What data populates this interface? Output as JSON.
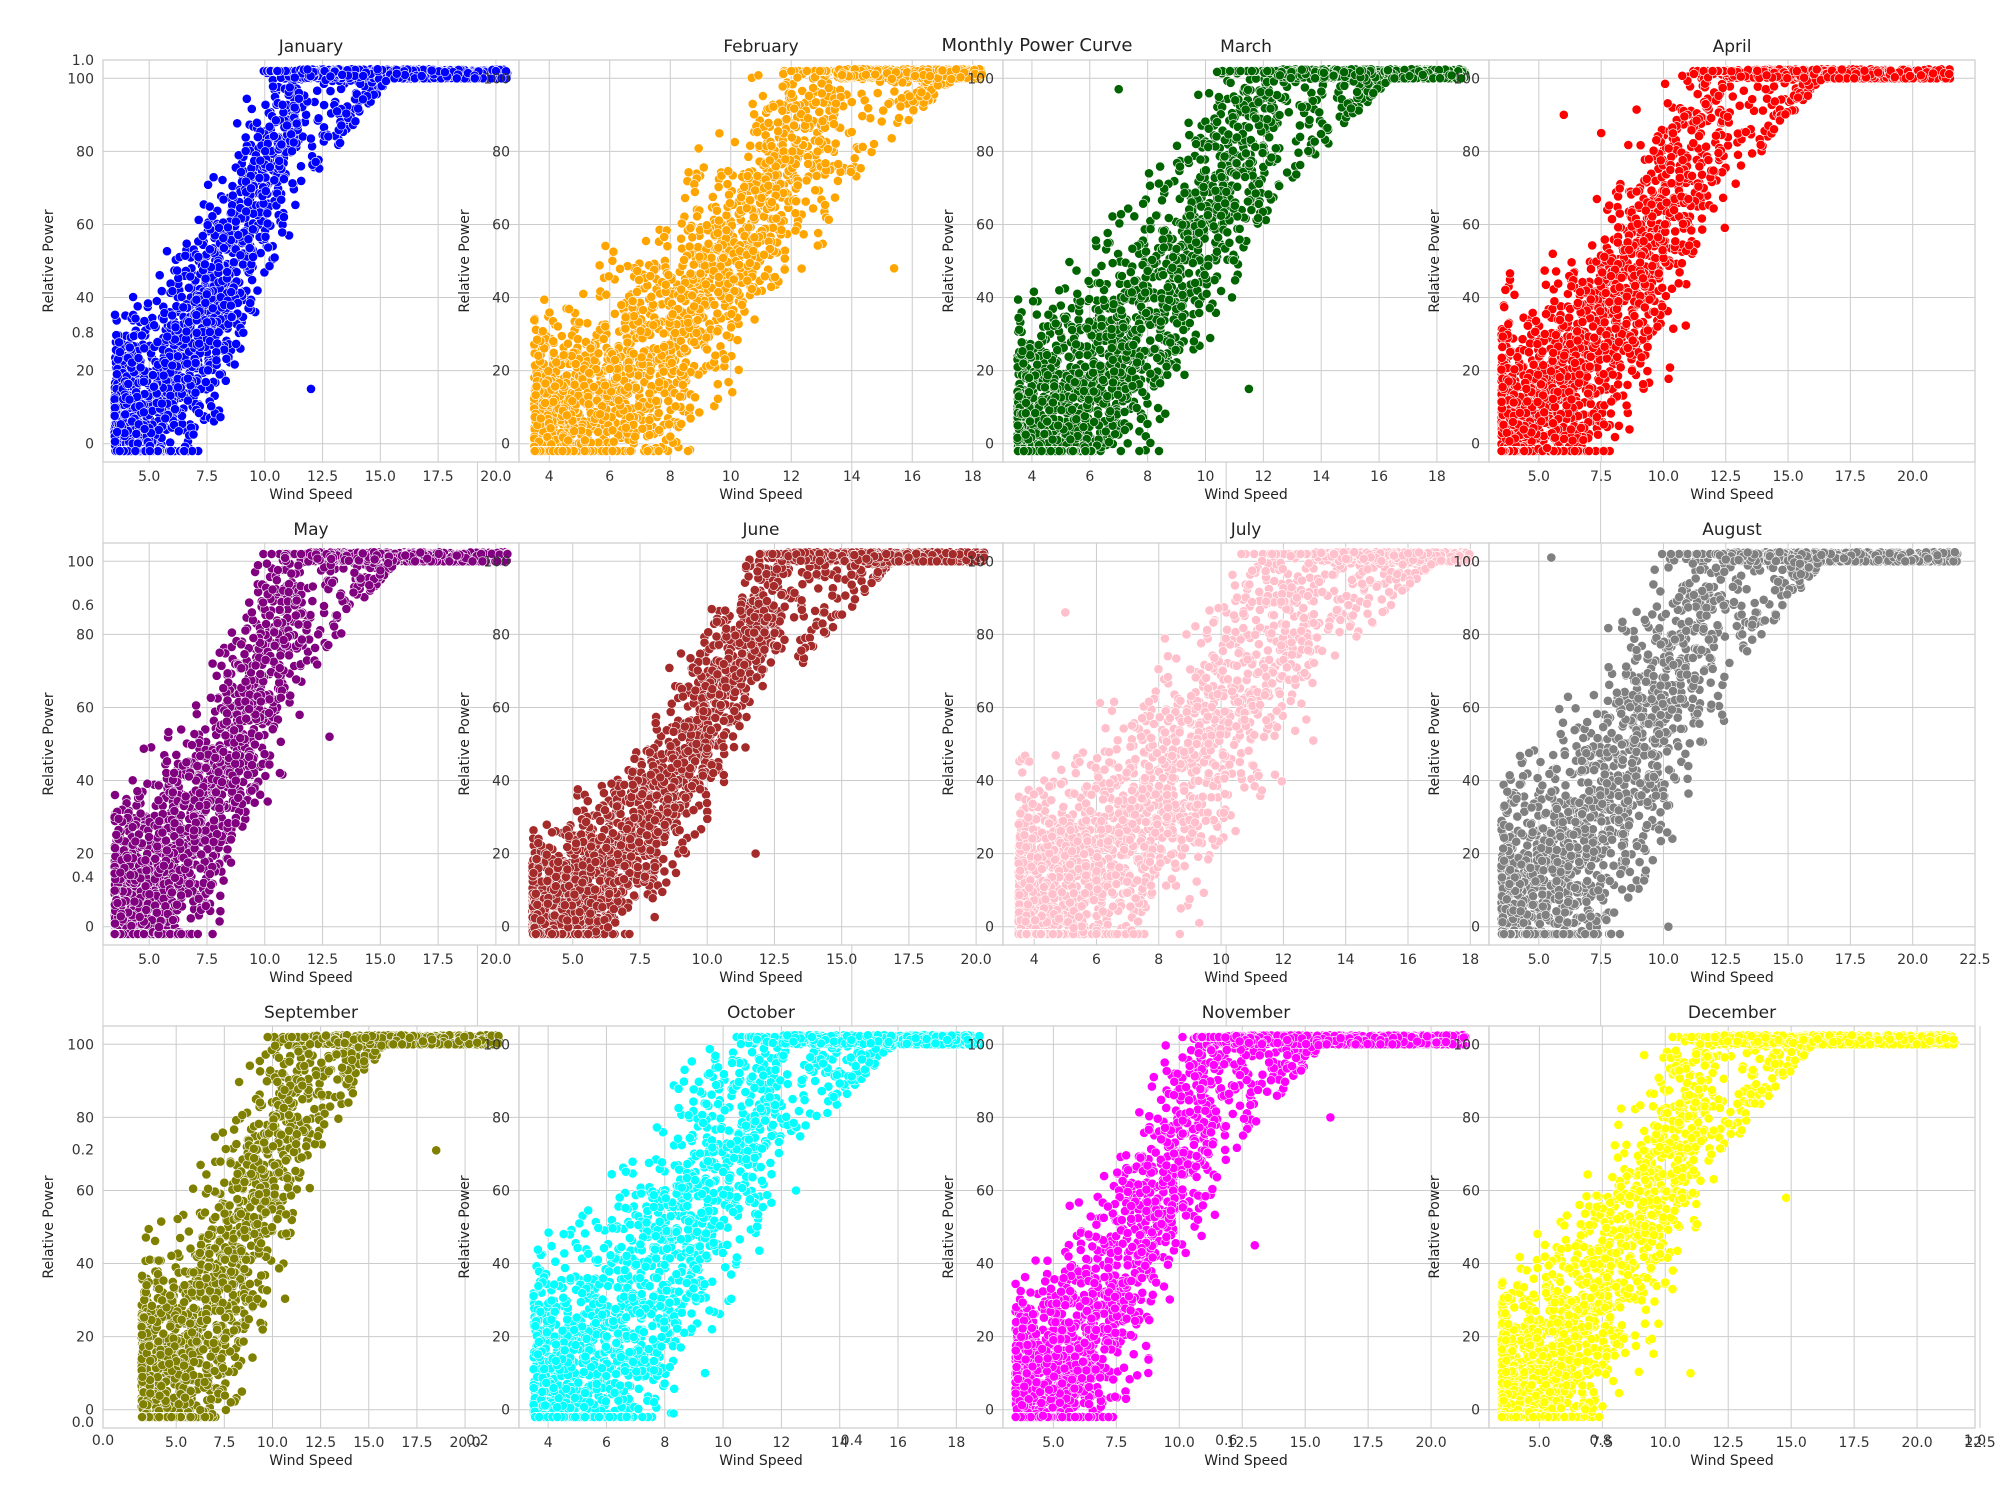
{
  "suptitle": "Monthly Power Curve",
  "background_axis": {
    "x_ticks": [
      "0.0",
      "0.2",
      "0.4",
      "0.6",
      "0.8",
      "1.0"
    ],
    "y_ticks": [
      "0.0",
      "0.2",
      "0.4",
      "0.6",
      "0.8",
      "1.0"
    ]
  },
  "chart_data": [
    {
      "type": "scatter",
      "title": "January",
      "xlabel": "Wind Speed",
      "ylabel": "Relative Power",
      "color": "#0000ff",
      "xlim": [
        3.0,
        21.0
      ],
      "ylim": [
        -5,
        105
      ],
      "x_ticks": [
        5.0,
        7.5,
        10.0,
        12.5,
        15.0,
        17.5,
        20.0
      ],
      "x_tick_labels": [
        "5.0",
        "7.5",
        "10.0",
        "12.5",
        "15.0",
        "17.5",
        "20.0"
      ],
      "y_ticks": [
        0,
        20,
        40,
        60,
        80,
        100
      ],
      "grid": true,
      "shape": {
        "x_start": 3.5,
        "x_rated": 11.5,
        "x_max": 20.5,
        "spread": 2.0,
        "outliers": [
          [
            12.0,
            15
          ],
          [
            20.0,
            102
          ]
        ]
      }
    },
    {
      "type": "scatter",
      "title": "February",
      "xlabel": "Wind Speed",
      "ylabel": "Relative Power",
      "color": "#ffa500",
      "xlim": [
        3.0,
        19.0
      ],
      "ylim": [
        -5,
        105
      ],
      "x_ticks": [
        4,
        6,
        8,
        10,
        12,
        14,
        16,
        18
      ],
      "x_tick_labels": [
        "4",
        "6",
        "8",
        "10",
        "12",
        "14",
        "16",
        "18"
      ],
      "y_ticks": [
        0,
        20,
        40,
        60,
        80,
        100
      ],
      "grid": true,
      "shape": {
        "x_start": 3.5,
        "x_rated": 13.5,
        "x_max": 18.3,
        "spread": 2.2,
        "outliers": [
          [
            15.4,
            48
          ],
          [
            18.3,
            101
          ]
        ]
      }
    },
    {
      "type": "scatter",
      "title": "March",
      "xlabel": "Wind Speed",
      "ylabel": "Relative Power",
      "color": "#006400",
      "xlim": [
        3.0,
        19.8
      ],
      "ylim": [
        -5,
        105
      ],
      "x_ticks": [
        4,
        6,
        8,
        10,
        12,
        14,
        16,
        18
      ],
      "x_tick_labels": [
        "4",
        "6",
        "8",
        "10",
        "12",
        "14",
        "16",
        "18"
      ],
      "y_ticks": [
        0,
        20,
        40,
        60,
        80,
        100
      ],
      "grid": true,
      "shape": {
        "x_start": 3.5,
        "x_rated": 12.5,
        "x_max": 19.0,
        "spread": 2.2,
        "outliers": [
          [
            11.5,
            15
          ],
          [
            7.0,
            97
          ]
        ]
      }
    },
    {
      "type": "scatter",
      "title": "April",
      "xlabel": "Wind Speed",
      "ylabel": "Relative Power",
      "color": "#ff0000",
      "xlim": [
        3.0,
        22.5
      ],
      "ylim": [
        -5,
        105
      ],
      "x_ticks": [
        5.0,
        7.5,
        10.0,
        12.5,
        15.0,
        17.5,
        20.0
      ],
      "x_tick_labels": [
        "5.0",
        "7.5",
        "10.0",
        "12.5",
        "15.0",
        "17.5",
        "20.0"
      ],
      "y_ticks": [
        0,
        20,
        40,
        60,
        80,
        100
      ],
      "grid": true,
      "shape": {
        "x_start": 3.5,
        "x_rated": 12.5,
        "x_max": 21.5,
        "spread": 2.3,
        "outliers": [
          [
            6.0,
            90
          ],
          [
            7.5,
            85
          ]
        ]
      }
    },
    {
      "type": "scatter",
      "title": "May",
      "xlabel": "Wind Speed",
      "ylabel": "Relative Power",
      "color": "#800080",
      "xlim": [
        3.0,
        21.0
      ],
      "ylim": [
        -5,
        105
      ],
      "x_ticks": [
        5.0,
        7.5,
        10.0,
        12.5,
        15.0,
        17.5,
        20.0
      ],
      "x_tick_labels": [
        "5.0",
        "7.5",
        "10.0",
        "12.5",
        "15.0",
        "17.5",
        "20.0"
      ],
      "y_ticks": [
        0,
        20,
        40,
        60,
        80,
        100
      ],
      "grid": true,
      "shape": {
        "x_start": 3.5,
        "x_rated": 11.8,
        "x_max": 20.5,
        "spread": 2.1,
        "outliers": [
          [
            12.8,
            52
          ],
          [
            20.5,
            102
          ]
        ]
      }
    },
    {
      "type": "scatter",
      "title": "June",
      "xlabel": "Wind Speed",
      "ylabel": "Relative Power",
      "color": "#a52a2a",
      "xlim": [
        3.0,
        21.0
      ],
      "ylim": [
        -5,
        105
      ],
      "x_ticks": [
        5.0,
        7.5,
        10.0,
        12.5,
        15.0,
        17.5,
        20.0
      ],
      "x_tick_labels": [
        "5.0",
        "7.5",
        "10.0",
        "12.5",
        "15.0",
        "17.5",
        "20.0"
      ],
      "y_ticks": [
        0,
        20,
        40,
        60,
        80,
        100
      ],
      "grid": true,
      "shape": {
        "x_start": 3.5,
        "x_rated": 13.0,
        "x_max": 20.3,
        "spread": 1.6,
        "outliers": [
          [
            11.8,
            20
          ],
          [
            20.3,
            101
          ]
        ]
      }
    },
    {
      "type": "scatter",
      "title": "July",
      "xlabel": "Wind Speed",
      "ylabel": "Relative Power",
      "color": "#ffc0cb",
      "xlim": [
        3.0,
        18.6
      ],
      "ylim": [
        -5,
        105
      ],
      "x_ticks": [
        4,
        6,
        8,
        10,
        12,
        14,
        16,
        18
      ],
      "x_tick_labels": [
        "4",
        "6",
        "8",
        "10",
        "12",
        "14",
        "16",
        "18"
      ],
      "y_ticks": [
        0,
        20,
        40,
        60,
        80,
        100
      ],
      "grid": true,
      "shape": {
        "x_start": 3.5,
        "x_rated": 13.0,
        "x_max": 18.0,
        "spread": 2.4,
        "outliers": [
          [
            5.0,
            86
          ],
          [
            9.3,
            1
          ]
        ]
      }
    },
    {
      "type": "scatter",
      "title": "August",
      "xlabel": "Wind Speed",
      "ylabel": "Relative Power",
      "color": "#808080",
      "xlim": [
        3.0,
        22.5
      ],
      "ylim": [
        -5,
        105
      ],
      "x_ticks": [
        5.0,
        7.5,
        10.0,
        12.5,
        15.0,
        17.5,
        20.0,
        22.5
      ],
      "x_tick_labels": [
        "5.0",
        "7.5",
        "10.0",
        "12.5",
        "15.0",
        "17.5",
        "20.0",
        "22.5"
      ],
      "y_ticks": [
        0,
        20,
        40,
        60,
        80,
        100
      ],
      "grid": true,
      "shape": {
        "x_start": 3.5,
        "x_rated": 12.5,
        "x_max": 21.8,
        "spread": 2.6,
        "outliers": [
          [
            5.5,
            101
          ],
          [
            10.2,
            0
          ]
        ]
      }
    },
    {
      "type": "scatter",
      "title": "September",
      "xlabel": "Wind Speed",
      "ylabel": "Relative Power",
      "color": "#808000",
      "xlim": [
        1.2,
        22.8
      ],
      "ylim": [
        -5,
        105
      ],
      "x_ticks": [
        5.0,
        7.5,
        10.0,
        12.5,
        15.0,
        17.5,
        20.0
      ],
      "x_tick_labels": [
        "5.0",
        "7.5",
        "10.0",
        "12.5",
        "15.0",
        "17.5",
        "20.0"
      ],
      "y_ticks": [
        0,
        20,
        40,
        60,
        80,
        100
      ],
      "grid": true,
      "shape": {
        "x_start": 3.2,
        "x_rated": 12.0,
        "x_max": 21.8,
        "spread": 2.5,
        "outliers": [
          [
            18.5,
            71
          ],
          [
            6.5,
            -2
          ]
        ]
      }
    },
    {
      "type": "scatter",
      "title": "October",
      "xlabel": "Wind Speed",
      "ylabel": "Relative Power",
      "color": "#00ffff",
      "xlim": [
        3.0,
        19.6
      ],
      "ylim": [
        -5,
        105
      ],
      "x_ticks": [
        4,
        6,
        8,
        10,
        12,
        14,
        16,
        18
      ],
      "x_tick_labels": [
        "4",
        "6",
        "8",
        "10",
        "12",
        "14",
        "16",
        "18"
      ],
      "y_ticks": [
        0,
        20,
        40,
        60,
        80,
        100
      ],
      "grid": true,
      "shape": {
        "x_start": 3.5,
        "x_rated": 12.0,
        "x_max": 18.8,
        "spread": 2.6,
        "outliers": [
          [
            8.3,
            -1
          ],
          [
            12.5,
            60
          ]
        ]
      }
    },
    {
      "type": "scatter",
      "title": "November",
      "xlabel": "Wind Speed",
      "ylabel": "Relative Power",
      "color": "#ff00ff",
      "xlim": [
        3.0,
        22.3
      ],
      "ylim": [
        -5,
        105
      ],
      "x_ticks": [
        5.0,
        7.5,
        10.0,
        12.5,
        15.0,
        17.5,
        20.0
      ],
      "x_tick_labels": [
        "5.0",
        "7.5",
        "10.0",
        "12.5",
        "15.0",
        "17.5",
        "20.0"
      ],
      "y_ticks": [
        0,
        20,
        40,
        60,
        80,
        100
      ],
      "grid": true,
      "shape": {
        "x_start": 3.5,
        "x_rated": 11.8,
        "x_max": 21.4,
        "spread": 2.2,
        "outliers": [
          [
            16.0,
            80
          ],
          [
            13.0,
            45
          ]
        ]
      }
    },
    {
      "type": "scatter",
      "title": "December",
      "xlabel": "Wind Speed",
      "ylabel": "Relative Power",
      "color": "#ffff00",
      "xlim": [
        3.0,
        22.3
      ],
      "ylim": [
        -5,
        105
      ],
      "x_ticks": [
        5.0,
        7.5,
        10.0,
        12.5,
        15.0,
        17.5,
        20.0,
        22.5
      ],
      "x_tick_labels": [
        "5.0",
        "7.5",
        "10.0",
        "12.5",
        "15.0",
        "17.5",
        "20.0",
        "22.5"
      ],
      "y_ticks": [
        0,
        20,
        40,
        60,
        80,
        100
      ],
      "grid": true,
      "shape": {
        "x_start": 3.5,
        "x_rated": 12.0,
        "x_max": 21.5,
        "spread": 2.3,
        "outliers": [
          [
            14.8,
            58
          ],
          [
            11.0,
            10
          ]
        ]
      }
    }
  ]
}
